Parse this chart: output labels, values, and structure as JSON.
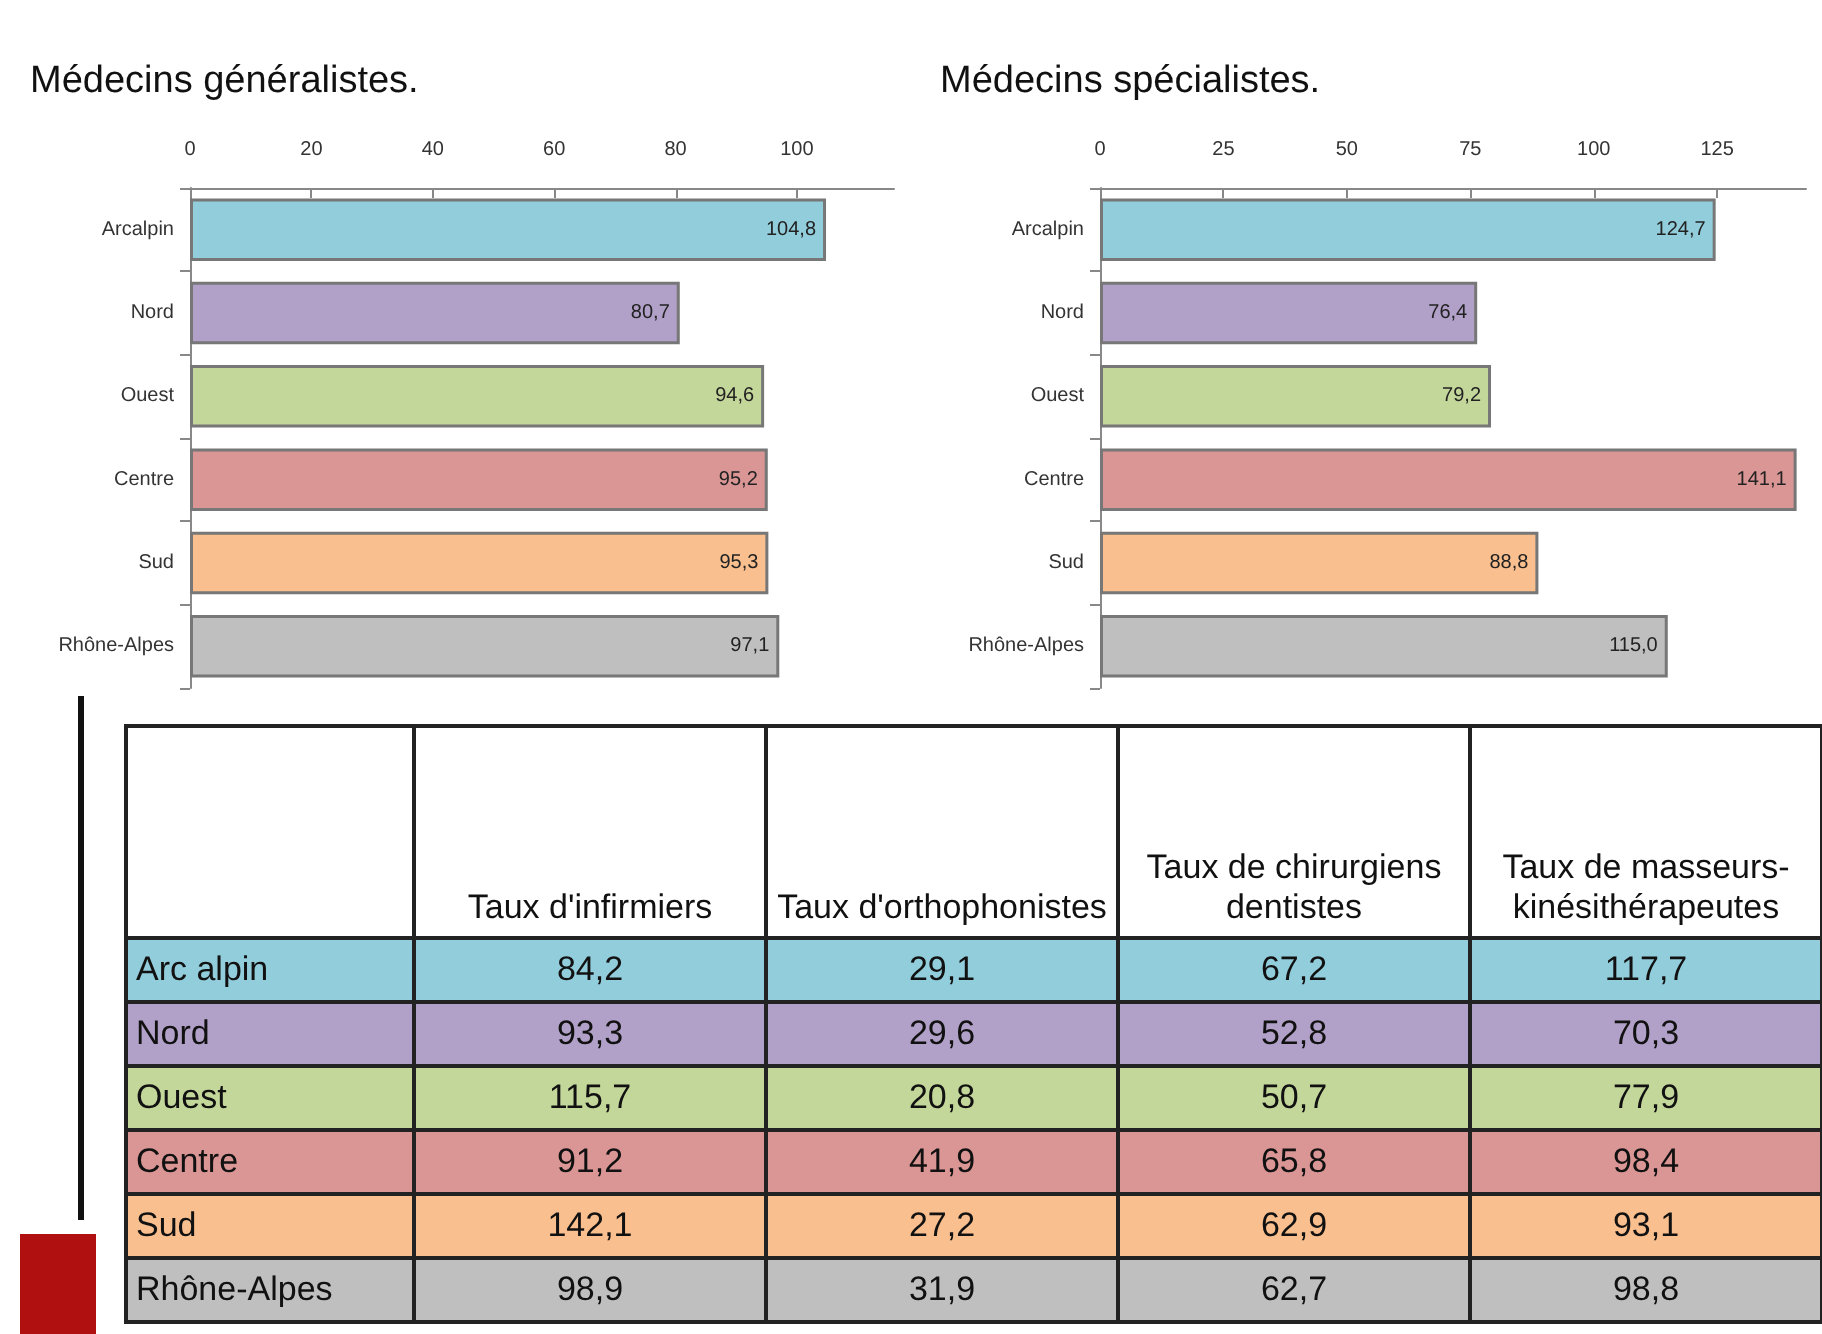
{
  "chart_data": [
    {
      "type": "bar",
      "orientation": "horizontal",
      "title": "Médecins généralistes.",
      "categories": [
        "Arcalpin",
        "Nord",
        "Ouest",
        "Centre",
        "Sud",
        "Rhône-Alpes"
      ],
      "values": [
        104.8,
        80.7,
        94.6,
        95.2,
        95.3,
        97.1
      ],
      "value_labels": [
        "104,8",
        "80,7",
        "94,6",
        "95,2",
        "95,3",
        "97,1"
      ],
      "colors": [
        "#92cddc",
        "#b1a0c7",
        "#c4d79b",
        "#da9694",
        "#fabf8f",
        "#bfbfbf"
      ],
      "xlim": [
        0,
        116
      ],
      "xticks": [
        0,
        20,
        40,
        60,
        80,
        100
      ],
      "grid": false
    },
    {
      "type": "bar",
      "orientation": "horizontal",
      "title": "Médecins spécialistes.",
      "categories": [
        "Arcalpin",
        "Nord",
        "Ouest",
        "Centre",
        "Sud",
        "Rhône-Alpes"
      ],
      "values": [
        124.7,
        76.4,
        79.2,
        141.1,
        88.8,
        115.0
      ],
      "value_labels": [
        "124,7",
        "76,4",
        "79,2",
        "141,1",
        "88,8",
        "115,0"
      ],
      "colors": [
        "#92cddc",
        "#b1a0c7",
        "#c4d79b",
        "#da9694",
        "#fabf8f",
        "#bfbfbf"
      ],
      "xlim": [
        0,
        143
      ],
      "xticks": [
        0,
        25,
        50,
        75,
        100,
        125
      ],
      "grid": false
    },
    {
      "type": "other",
      "categories": [
        "Taux d'infirmiers",
        "Taux d'orthophonistes",
        "Taux de chirurgiens dentistes",
        "Taux de masseurs-kinésithérapeutes"
      ],
      "y_categories": [
        "Arc alpin",
        "Nord",
        "Ouest",
        "Centre",
        "Sud",
        "Rhône-Alpes"
      ],
      "cell_labels": [
        [
          "84,2",
          "29,1",
          "67,2",
          "117,7"
        ],
        [
          "93,3",
          "29,6",
          "52,8",
          "70,3"
        ],
        [
          "115,7",
          "20,8",
          "50,7",
          "77,9"
        ],
        [
          "91,2",
          "41,9",
          "65,8",
          "98,4"
        ],
        [
          "142,1",
          "27,2",
          "62,9",
          "93,1"
        ],
        [
          "98,9",
          "31,9",
          "62,7",
          "98,8"
        ]
      ],
      "colors": [
        "#92cddc",
        "#b1a0c7",
        "#c4d79b",
        "#da9694",
        "#fabf8f",
        "#bfbfbf"
      ]
    }
  ]
}
